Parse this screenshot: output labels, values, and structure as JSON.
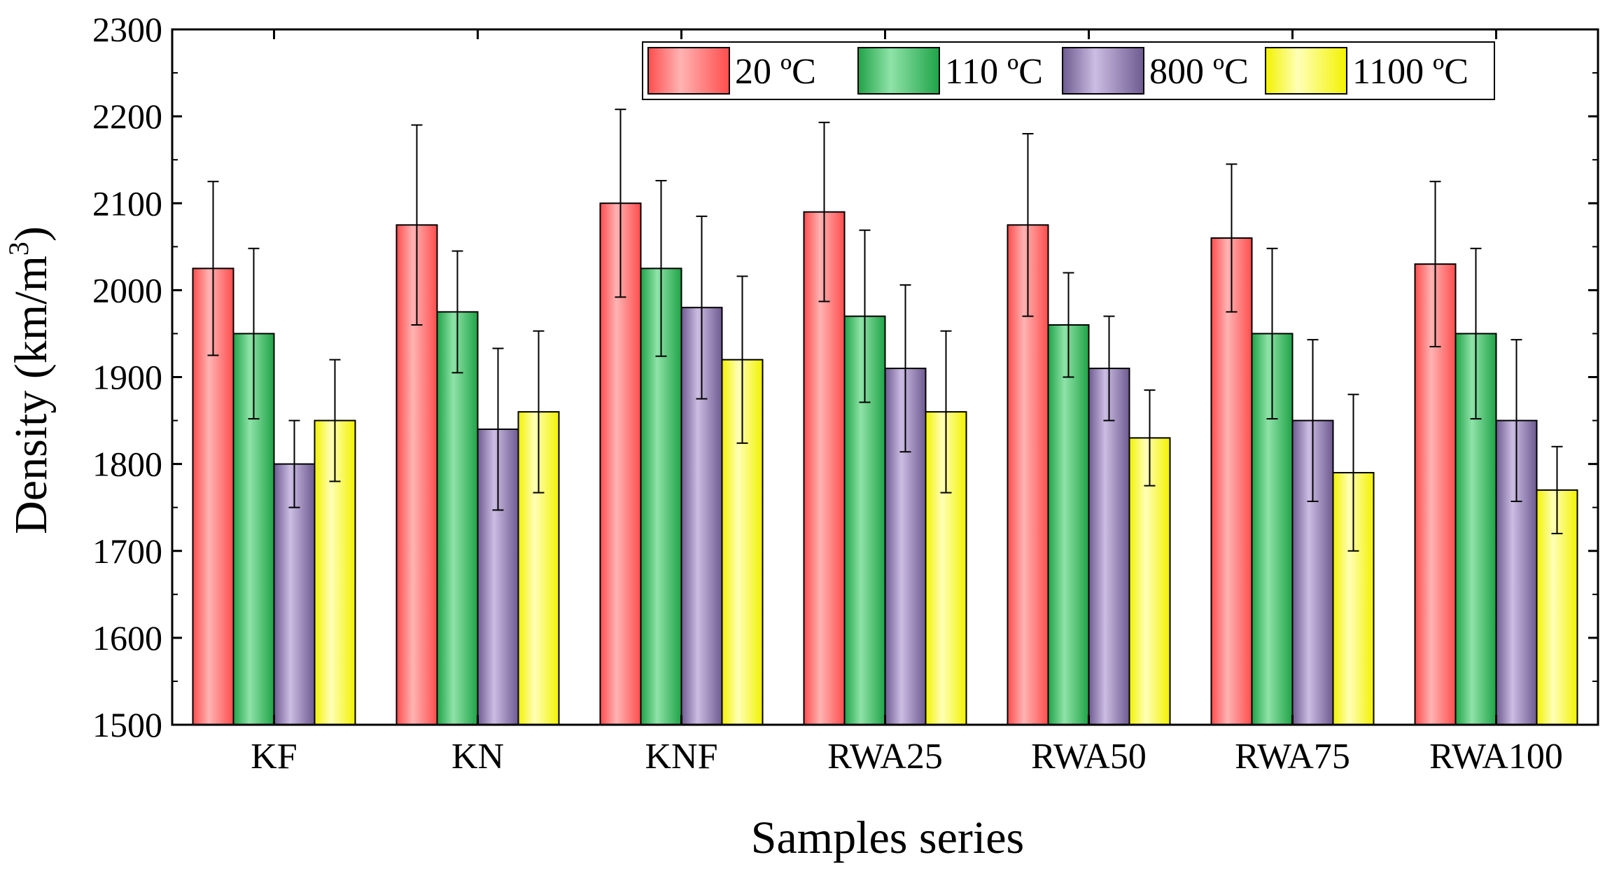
{
  "chart_data": {
    "type": "bar",
    "title": "",
    "xlabel": "Samples series",
    "ylabel": "Density (km/m3)",
    "ylabel_main": "Density (km/m",
    "ylabel_sup": "3",
    "ylabel_close": ")",
    "ylim": [
      1500,
      2300
    ],
    "yticks": [
      1500,
      1600,
      1700,
      1800,
      1900,
      2000,
      2100,
      2200,
      2300
    ],
    "categories": [
      "KF",
      "KN",
      "KNF",
      "RWA25",
      "RWA50",
      "RWA75",
      "RWA100"
    ],
    "legend_position": "top-right",
    "grid": false,
    "series": [
      {
        "name": "20 ºC",
        "color": "#ff4d4d",
        "highlight": "#ffb3b3",
        "values": [
          2025,
          2075,
          2100,
          2090,
          2075,
          2060,
          2030
        ],
        "err_upper": [
          2125,
          2190,
          2208,
          2193,
          2180,
          2145,
          2125
        ],
        "err_lower": [
          1925,
          1960,
          1992,
          1987,
          1970,
          1975,
          1935
        ]
      },
      {
        "name": "110 ºC",
        "color": "#1fa347",
        "highlight": "#8fe3a8",
        "values": [
          1950,
          1975,
          2025,
          1970,
          1960,
          1950,
          1950
        ],
        "err_upper": [
          2048,
          2045,
          2126,
          2069,
          2020,
          2048,
          2048
        ],
        "err_lower": [
          1852,
          1905,
          1924,
          1871,
          1900,
          1852,
          1852
        ]
      },
      {
        "name": "800 ºC",
        "color": "#6e5a90",
        "highlight": "#cbbde3",
        "values": [
          1800,
          1840,
          1980,
          1910,
          1910,
          1850,
          1850
        ],
        "err_upper": [
          1850,
          1933,
          2085,
          2006,
          1970,
          1943,
          1943
        ],
        "err_lower": [
          1750,
          1747,
          1875,
          1814,
          1850,
          1757,
          1757
        ]
      },
      {
        "name": "1100 ºC",
        "color": "#f2f200",
        "highlight": "#ffffb8",
        "values": [
          1850,
          1860,
          1920,
          1860,
          1830,
          1790,
          1770
        ],
        "err_upper": [
          1920,
          1953,
          2016,
          1953,
          1885,
          1880,
          1820
        ],
        "err_lower": [
          1780,
          1767,
          1824,
          1767,
          1775,
          1700,
          1720
        ]
      }
    ]
  }
}
